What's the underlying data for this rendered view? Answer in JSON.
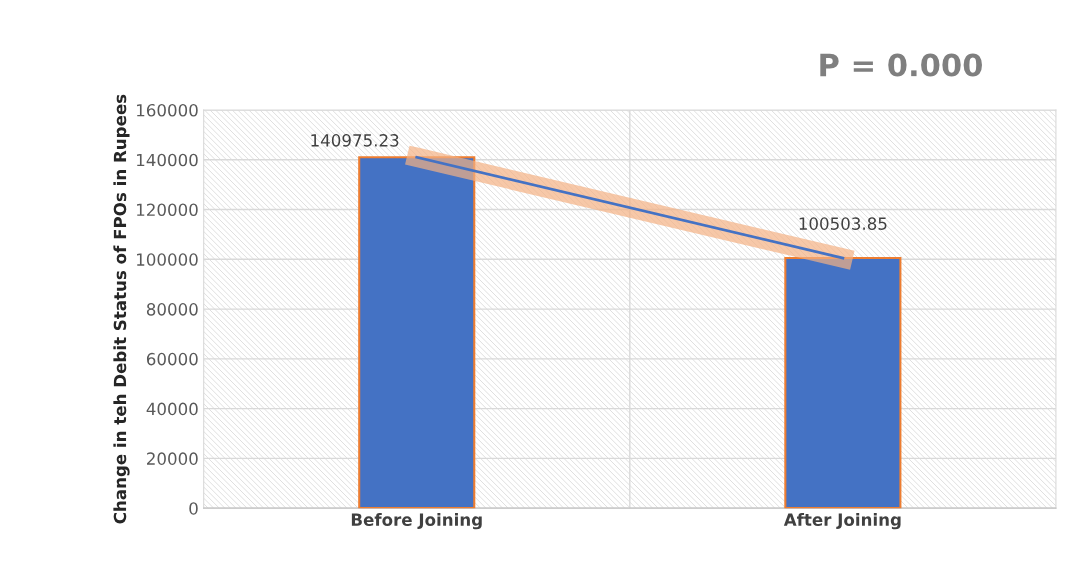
{
  "chart_data": {
    "type": "bar",
    "categories": [
      "Before Joining",
      "After Joining"
    ],
    "series": [
      {
        "color": "#4472c4",
        "values": [
          140975.23,
          100503.85
        ]
      },
      {
        "type": "line",
        "color": "#4472c4",
        "values": [
          140975.23,
          100503.85
        ],
        "value_labels": [
          "140975.23",
          "100503.85"
        ]
      }
    ],
    "ylabel": "Change in teh Debit Status of FPOs in Rupees",
    "annotations": [
      "P = 0.000"
    ],
    "ylim": [
      0,
      160000
    ],
    "yticks": [
      0,
      20000,
      40000,
      60000,
      80000,
      100000,
      120000,
      140000,
      160000
    ],
    "grid": true,
    "legend": false,
    "marker": "none"
  }
}
